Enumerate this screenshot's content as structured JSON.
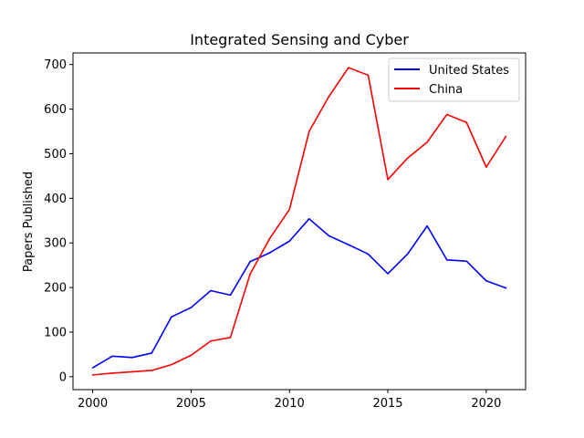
{
  "chart_data": {
    "type": "line",
    "title": "Integrated Sensing and Cyber",
    "xlabel": "",
    "ylabel": "Papers Published",
    "x": [
      2000,
      2001,
      2002,
      2003,
      2004,
      2005,
      2006,
      2007,
      2008,
      2009,
      2010,
      2011,
      2012,
      2013,
      2014,
      2015,
      2016,
      2017,
      2018,
      2019,
      2020,
      2021
    ],
    "xlim": [
      1999,
      2022
    ],
    "ylim": [
      -29,
      726
    ],
    "xticks": [
      2000,
      2005,
      2010,
      2015,
      2020
    ],
    "yticks": [
      0,
      100,
      200,
      300,
      400,
      500,
      600,
      700
    ],
    "grid": false,
    "legend_position": "top-right",
    "series": [
      {
        "name": "United States",
        "color": "#0000ff",
        "values": [
          20,
          46,
          43,
          53,
          134,
          155,
          193,
          183,
          258,
          278,
          304,
          354,
          316,
          296,
          275,
          231,
          275,
          338,
          262,
          259,
          215,
          199
        ]
      },
      {
        "name": "China",
        "color": "#ff0000",
        "values": [
          4,
          8,
          11,
          14,
          27,
          48,
          80,
          88,
          230,
          310,
          375,
          550,
          628,
          693,
          676,
          442,
          490,
          526,
          588,
          570,
          470,
          539
        ]
      }
    ]
  }
}
